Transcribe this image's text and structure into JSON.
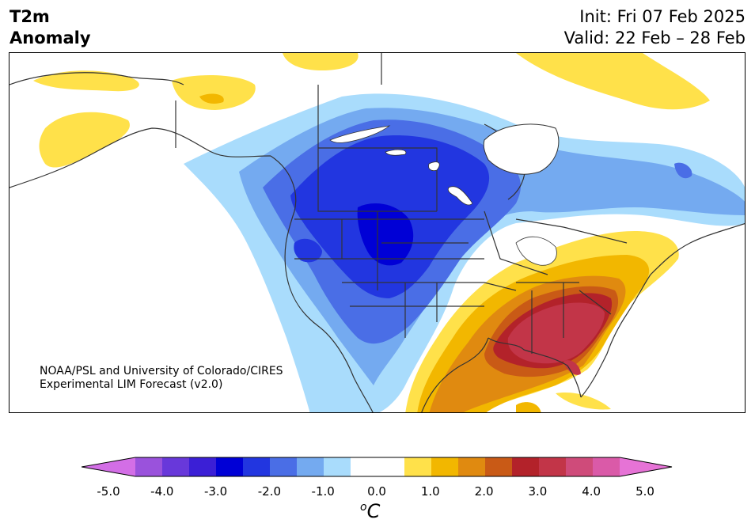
{
  "title": {
    "left_line1": "T2m",
    "left_line2": "Anomaly",
    "init": "Init: Fri 07 Feb 2025",
    "valid": "Valid: 22 Feb – 28 Feb"
  },
  "credit": {
    "line1": "NOAA/PSL and University of Colorado/CIRES",
    "line2": "Experimental LIM Forecast (v2.0)"
  },
  "colorbar": {
    "unit_sup": "o",
    "unit_main": "C",
    "ticks": [
      "-5.0",
      "-4.0",
      "-3.0",
      "-2.0",
      "-1.0",
      "0.0",
      "1.0",
      "2.0",
      "3.0",
      "4.0",
      "5.0"
    ],
    "colors": [
      "#d36ee6",
      "#9a52dc",
      "#6838da",
      "#3b1fd6",
      "#0000d6",
      "#2236e0",
      "#4a6ee6",
      "#74aaf0",
      "#a9dcfc",
      "#ffffff",
      "#ffffff",
      "#ffe14a",
      "#f2b700",
      "#e08a10",
      "#c95a16",
      "#b3222a",
      "#c23548",
      "#cf4b7a",
      "#da5aa8",
      "#e673d6"
    ]
  },
  "colors": {
    "cold_strong": "#0000d6",
    "warm_strong": "#c23548",
    "neutral": "#ffffff"
  }
}
